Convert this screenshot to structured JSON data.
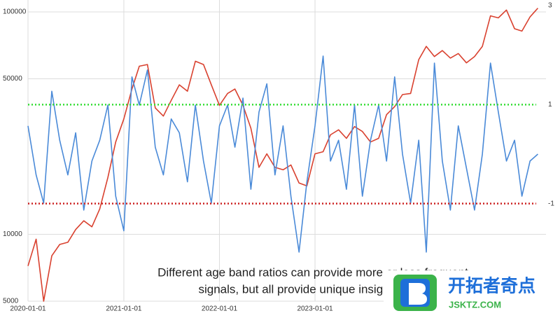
{
  "chart_data": {
    "type": "line",
    "x": [
      "2020-01-01",
      "2020-02-01",
      "2020-03-01",
      "2020-04-01",
      "2020-05-01",
      "2020-06-01",
      "2020-07-01",
      "2020-08-01",
      "2020-09-01",
      "2020-10-01",
      "2020-11-01",
      "2020-12-01",
      "2021-01-01",
      "2021-02-01",
      "2021-03-01",
      "2021-04-01",
      "2021-05-01",
      "2021-06-01",
      "2021-07-01",
      "2021-08-01",
      "2021-09-01",
      "2021-10-01",
      "2021-11-01",
      "2021-12-01",
      "2022-01-01",
      "2022-02-01",
      "2022-03-01",
      "2022-04-01",
      "2022-05-01",
      "2022-06-01",
      "2022-07-01",
      "2022-08-01",
      "2022-09-01",
      "2022-10-01",
      "2022-11-01",
      "2022-12-01",
      "2023-01-01",
      "2023-02-01",
      "2023-03-01",
      "2023-04-01",
      "2023-05-01",
      "2023-06-01",
      "2023-07-01",
      "2023-08-01",
      "2023-09-01",
      "2023-10-01",
      "2023-11-01",
      "2023-12-01",
      "2024-01-01",
      "2024-02-01",
      "2024-03-01",
      "2024-04-01",
      "2024-05-01",
      "2024-06-01",
      "2024-07-01",
      "2024-08-01",
      "2024-09-01",
      "2024-10-01",
      "2024-11-01",
      "2024-12-01",
      "2025-01-01",
      "2025-02-01",
      "2025-03-01",
      "2025-04-01",
      "2025-05-01"
    ],
    "series": [
      {
        "color": "#d9412f",
        "values": [
          7200,
          9500,
          5000,
          8000,
          9000,
          9200,
          10500,
          11500,
          10800,
          13000,
          18000,
          26000,
          33000,
          45000,
          57000,
          58000,
          37000,
          34000,
          40000,
          47000,
          44000,
          60000,
          58000,
          47000,
          38000,
          43000,
          45000,
          38000,
          30000,
          20000,
          23000,
          20000,
          19500,
          20500,
          17000,
          16500,
          23000,
          23500,
          28000,
          29500,
          27000,
          30500,
          29000,
          26000,
          27000,
          34500,
          37500,
          42500,
          43000,
          61000,
          70000,
          63000,
          67000,
          62000,
          65000,
          59000,
          63000,
          70000,
          96000,
          94000,
          102000,
          84000,
          82000,
          95000,
          104000
        ]
      },
      {
        "color": "#4a8ad8",
        "axis": "y2",
        "values": [
          0.57,
          -0.42,
          -0.99,
          1.27,
          0.28,
          -0.42,
          0.43,
          -1.13,
          -0.14,
          0.28,
          0.99,
          -0.85,
          -1.55,
          1.56,
          0.99,
          1.7,
          0.14,
          -0.42,
          0.71,
          0.43,
          -0.56,
          0.99,
          -0.14,
          -0.99,
          0.57,
          0.99,
          0.14,
          1.13,
          -0.71,
          0.85,
          1.42,
          -0.42,
          0.57,
          -0.85,
          -1.98,
          -0.56,
          0.57,
          1.98,
          -0.14,
          0.28,
          -0.71,
          0.99,
          -0.85,
          0.28,
          0.99,
          -0.14,
          1.56,
          0,
          -0.99,
          0.28,
          -1.98,
          1.84,
          -0.14,
          -1.13,
          0.57,
          -0.28,
          -1.13,
          0,
          1.84,
          0.85,
          -0.14,
          0.28,
          -0.85,
          -0.14,
          0
        ]
      }
    ],
    "xlim": [
      "2020-01-01",
      "2025-06-01"
    ],
    "xticks": [
      "2020-01-01",
      "2021-01-01",
      "2022-01-01",
      "2023-01-01"
    ],
    "ylim": [
      5000,
      100000
    ],
    "yticks": [
      100000,
      50000,
      10000,
      5000
    ],
    "ylog": true,
    "y2lim": [
      -3,
      3
    ],
    "y2ticks": [
      3,
      1,
      -1
    ],
    "reference_lines": [
      {
        "value": 1,
        "color": "#33dd33"
      },
      {
        "value": -1,
        "color": "#cc2222"
      }
    ],
    "grid": true
  },
  "caption": [
    "Different age band ratios can provide more or less frequent",
    "signals, but all provide unique insights into i"
  ],
  "watermark": {
    "title": "开拓者奇点",
    "url": "JSKTZ.COM"
  }
}
